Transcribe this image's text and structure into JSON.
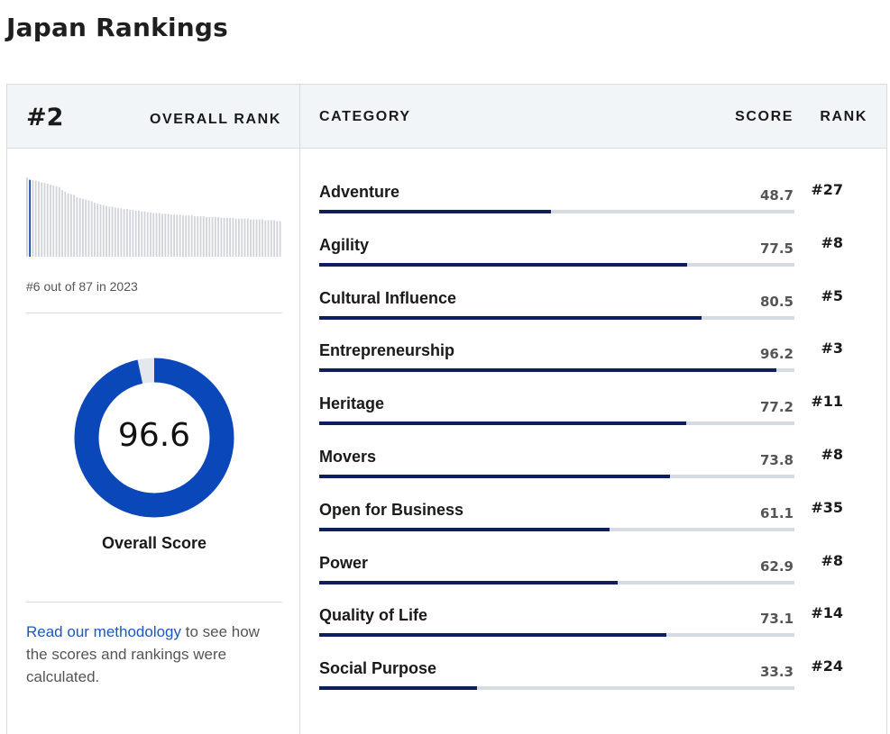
{
  "page": {
    "title": "Japan Rankings"
  },
  "overall": {
    "rank": "#2",
    "rank_label": "OVERALL RANK",
    "history_caption": "#6 out of 87 in 2023",
    "score": "96.6",
    "score_value": 96.6,
    "score_label": "Overall Score",
    "history": [
      100,
      97,
      96.6,
      96,
      95,
      94,
      93,
      92,
      91,
      90,
      89,
      88,
      84,
      82,
      80,
      79,
      78,
      75,
      74,
      73,
      72,
      71,
      70,
      68,
      67,
      66,
      65,
      64,
      63,
      63,
      62,
      61,
      61,
      60,
      60,
      59,
      59,
      58,
      58,
      57,
      57,
      56,
      56,
      55,
      55,
      55,
      54,
      54,
      54,
      53,
      53,
      53,
      53,
      52,
      52,
      52,
      52,
      51,
      51,
      51,
      51,
      50,
      50,
      50,
      50,
      50,
      49,
      49,
      49,
      49,
      49,
      48,
      48,
      48,
      48,
      48,
      47,
      47,
      47,
      47,
      47,
      46,
      46,
      46,
      46,
      45,
      45
    ],
    "highlight_index": 1
  },
  "table": {
    "col_category": "CATEGORY",
    "col_score": "SCORE",
    "col_rank": "RANK",
    "rows": [
      {
        "name": "Adventure",
        "score": "48.7",
        "value": 48.7,
        "rank": "#27"
      },
      {
        "name": "Agility",
        "score": "77.5",
        "value": 77.5,
        "rank": "#8"
      },
      {
        "name": "Cultural Influence",
        "score": "80.5",
        "value": 80.5,
        "rank": "#5"
      },
      {
        "name": "Entrepreneurship",
        "score": "96.2",
        "value": 96.2,
        "rank": "#3"
      },
      {
        "name": "Heritage",
        "score": "77.2",
        "value": 77.2,
        "rank": "#11"
      },
      {
        "name": "Movers",
        "score": "73.8",
        "value": 73.8,
        "rank": "#8"
      },
      {
        "name": "Open for Business",
        "score": "61.1",
        "value": 61.1,
        "rank": "#35"
      },
      {
        "name": "Power",
        "score": "62.9",
        "value": 62.9,
        "rank": "#8"
      },
      {
        "name": "Quality of Life",
        "score": "73.1",
        "value": 73.1,
        "rank": "#14"
      },
      {
        "name": "Social Purpose",
        "score": "33.3",
        "value": 33.3,
        "rank": "#24"
      }
    ]
  },
  "methodology": {
    "link_text": "Read our methodology",
    "rest_text": " to see how the scores and rankings were calculated."
  },
  "colors": {
    "donut_fill": "#0a47b8",
    "donut_track": "#e3e7ee",
    "bar_fill": "#0d1f5c",
    "spark_bar": "#cfd4db",
    "spark_highlight": "#0a47b8"
  }
}
